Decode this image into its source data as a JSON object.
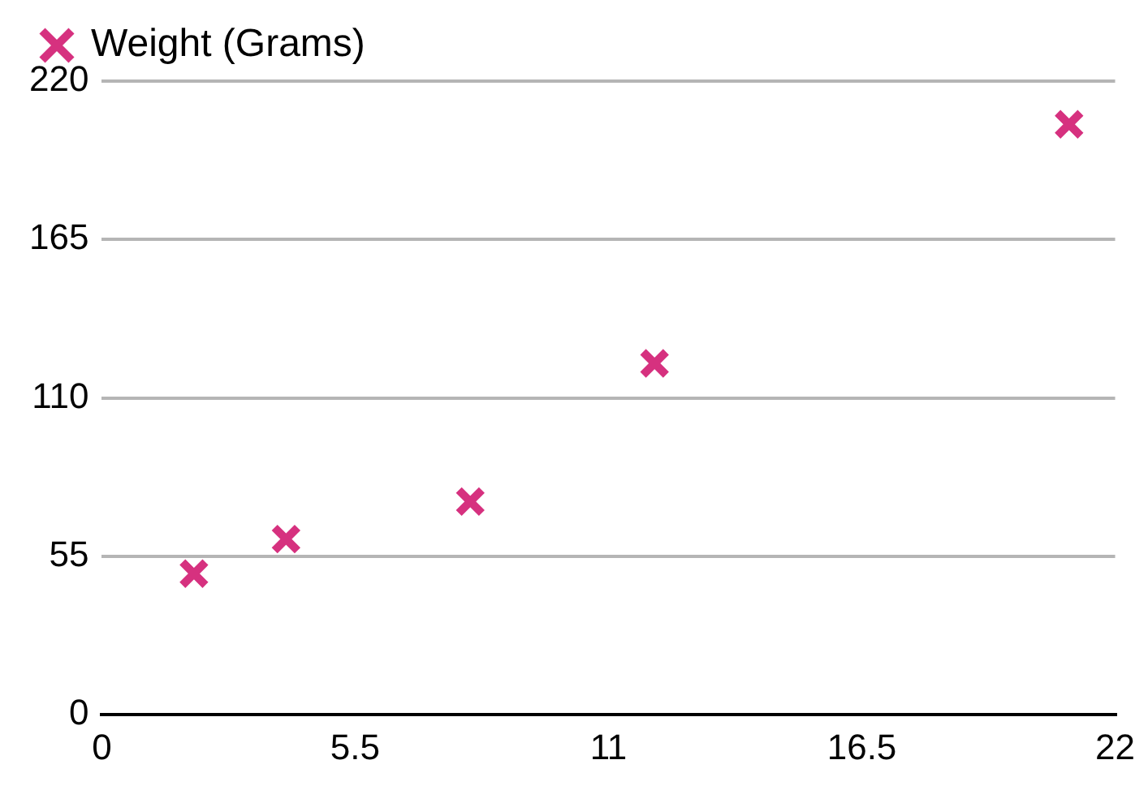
{
  "chart_data": {
    "type": "scatter",
    "x": [
      2,
      4,
      8,
      12,
      21
    ],
    "series": [
      {
        "name": "Weight (Grams)",
        "color": "#d6317f",
        "values": [
          49,
          61,
          74,
          122,
          205
        ]
      }
    ],
    "xlim": [
      0,
      22
    ],
    "xticks": [
      0,
      5.5,
      11,
      16.5,
      22
    ],
    "ylim": [
      0,
      220
    ],
    "yticks": [
      0,
      55,
      110,
      165,
      220
    ],
    "grid": "y",
    "legend": "top left",
    "marker": "cross"
  }
}
